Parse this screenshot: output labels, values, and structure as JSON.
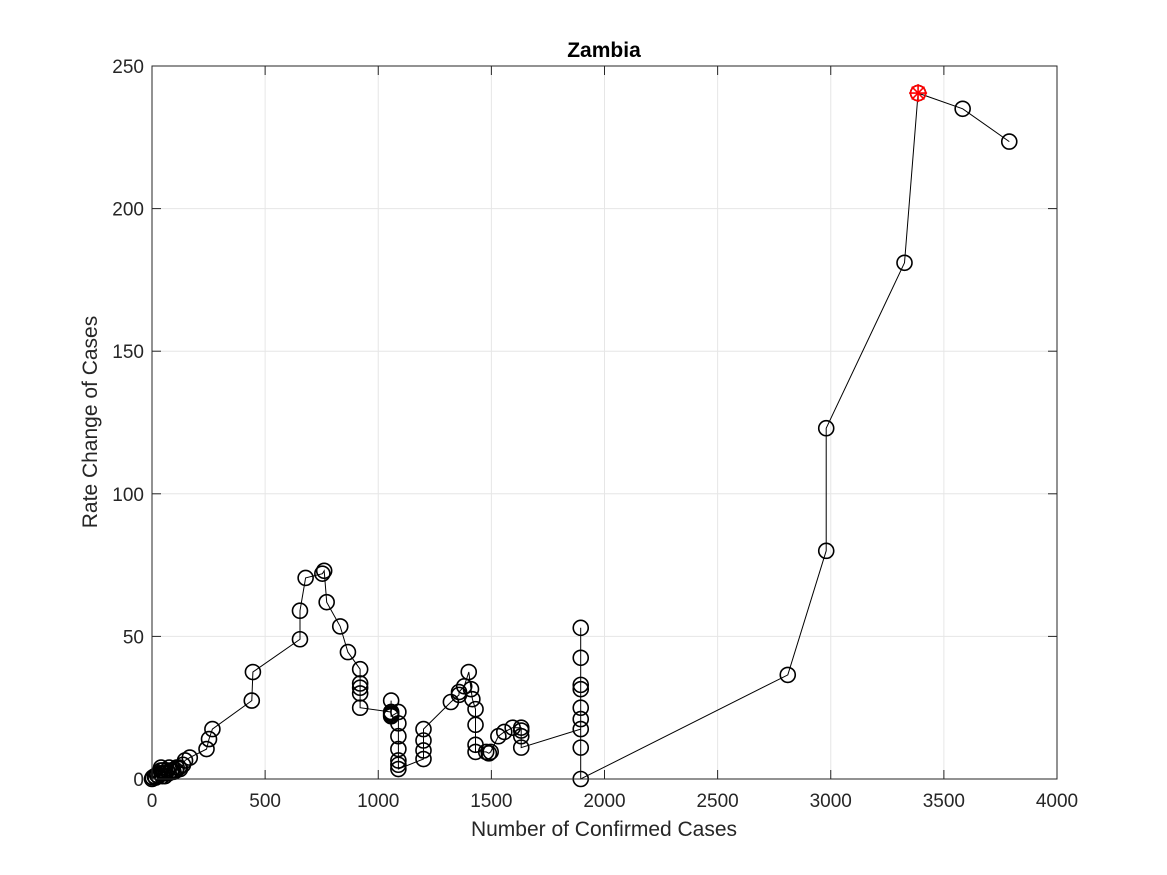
{
  "chart_data": {
    "type": "scatter",
    "title": "Zambia",
    "xlabel": "Number of Confirmed Cases",
    "ylabel": "Rate Change of Cases",
    "xlim": [
      0,
      4000
    ],
    "ylim": [
      0,
      250
    ],
    "xticks": [
      "0",
      "500",
      "1000",
      "1500",
      "2000",
      "2500",
      "3000",
      "3500",
      "4000"
    ],
    "yticks": [
      "0",
      "50",
      "100",
      "150",
      "200",
      "250"
    ],
    "grid": true,
    "series": [
      {
        "marker": "circle",
        "line": "solid",
        "color": "#000000",
        "points": [
          [
            0,
            0
          ],
          [
            3,
            0.5
          ],
          [
            12,
            1
          ],
          [
            16,
            0.5
          ],
          [
            22,
            1.5
          ],
          [
            28,
            1
          ],
          [
            35,
            2
          ],
          [
            39,
            3
          ],
          [
            40,
            4
          ],
          [
            45,
            1
          ],
          [
            48,
            3
          ],
          [
            52,
            2
          ],
          [
            57,
            1
          ],
          [
            61,
            2
          ],
          [
            67,
            3
          ],
          [
            74,
            2
          ],
          [
            76,
            4
          ],
          [
            84,
            3
          ],
          [
            89,
            3
          ],
          [
            95,
            2.5
          ],
          [
            106,
            3
          ],
          [
            109,
            4
          ],
          [
            119,
            4
          ],
          [
            124,
            3.5
          ],
          [
            137,
            5
          ],
          [
            146,
            6.5
          ],
          [
            167,
            7.5
          ],
          [
            241,
            10.5
          ],
          [
            252,
            14
          ],
          [
            267,
            17.5
          ],
          [
            441,
            27.5
          ],
          [
            446,
            37.5
          ],
          [
            654,
            49
          ],
          [
            654,
            59
          ],
          [
            679,
            70.5
          ],
          [
            753,
            72
          ],
          [
            761,
            73
          ],
          [
            772,
            62
          ],
          [
            832,
            53.5
          ],
          [
            866,
            44.5
          ],
          [
            920,
            38.5
          ],
          [
            920,
            33.5
          ],
          [
            920,
            32
          ],
          [
            920,
            30
          ],
          [
            920,
            25
          ],
          [
            1057,
            23.5
          ],
          [
            1057,
            27.5
          ],
          [
            1057,
            23
          ],
          [
            1057,
            22.5
          ],
          [
            1057,
            22
          ],
          [
            1089,
            23.5
          ],
          [
            1089,
            19.5
          ],
          [
            1089,
            15
          ],
          [
            1089,
            10.5
          ],
          [
            1089,
            6.5
          ],
          [
            1089,
            5
          ],
          [
            1089,
            3.5
          ],
          [
            1200,
            7
          ],
          [
            1200,
            10
          ],
          [
            1200,
            13.5
          ],
          [
            1200,
            17.5
          ],
          [
            1321,
            27
          ],
          [
            1357,
            29.5
          ],
          [
            1357,
            30.5
          ],
          [
            1380,
            32.5
          ],
          [
            1400,
            37.5
          ],
          [
            1410,
            31.5
          ],
          [
            1416,
            28
          ],
          [
            1430,
            24.5
          ],
          [
            1430,
            19
          ],
          [
            1430,
            12
          ],
          [
            1430,
            9.5
          ],
          [
            1477,
            9.5
          ],
          [
            1489,
            9
          ],
          [
            1497,
            9.5
          ],
          [
            1531,
            15
          ],
          [
            1557,
            16.5
          ],
          [
            1594,
            18
          ],
          [
            1632,
            18
          ],
          [
            1632,
            17
          ],
          [
            1632,
            15
          ],
          [
            1632,
            11
          ],
          [
            1895,
            17.5
          ],
          [
            1895,
            21
          ],
          [
            1895,
            25
          ],
          [
            1895,
            31.5
          ],
          [
            1895,
            33
          ],
          [
            1895,
            42.5
          ],
          [
            1895,
            53
          ],
          [
            1895,
            11
          ],
          [
            1895,
            0
          ],
          [
            2810,
            36.5
          ],
          [
            2980,
            80
          ],
          [
            2980,
            123
          ],
          [
            3326,
            181
          ],
          [
            3386,
            240.5
          ],
          [
            3583,
            235
          ],
          [
            3789,
            223.5
          ]
        ]
      }
    ],
    "highlight": {
      "x": 3386,
      "y": 240.5,
      "marker": "asterisk-circle",
      "color": "#ff0000"
    }
  }
}
